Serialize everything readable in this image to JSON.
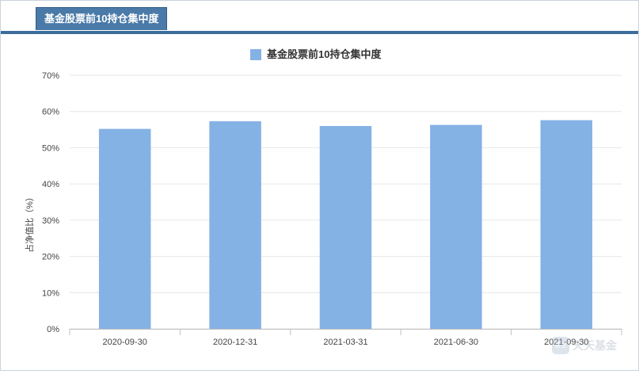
{
  "tab": {
    "label": "基金股票前10持仓集中度"
  },
  "watermark": {
    "text": "天天基金"
  },
  "colors": {
    "bar": "#85b2e5",
    "grid": "#e6e6e6",
    "axis": "#c0c0c0",
    "text": "#444444"
  },
  "chart_data": {
    "type": "bar",
    "title": "",
    "legend": [
      "基金股票前10持仓集中度"
    ],
    "legend_position": "top-center",
    "categories": [
      "2020-09-30",
      "2020-12-31",
      "2021-03-31",
      "2021-06-30",
      "2021-09-30"
    ],
    "series": [
      {
        "name": "基金股票前10持仓集中度",
        "values": [
          55.2,
          57.3,
          56.0,
          56.3,
          57.6
        ]
      }
    ],
    "xlabel": "",
    "ylabel": "占净值比（%）",
    "ylim": [
      0,
      70
    ],
    "yticks": [
      "0%",
      "10%",
      "20%",
      "30%",
      "40%",
      "50%",
      "60%",
      "70%"
    ],
    "grid": true
  }
}
